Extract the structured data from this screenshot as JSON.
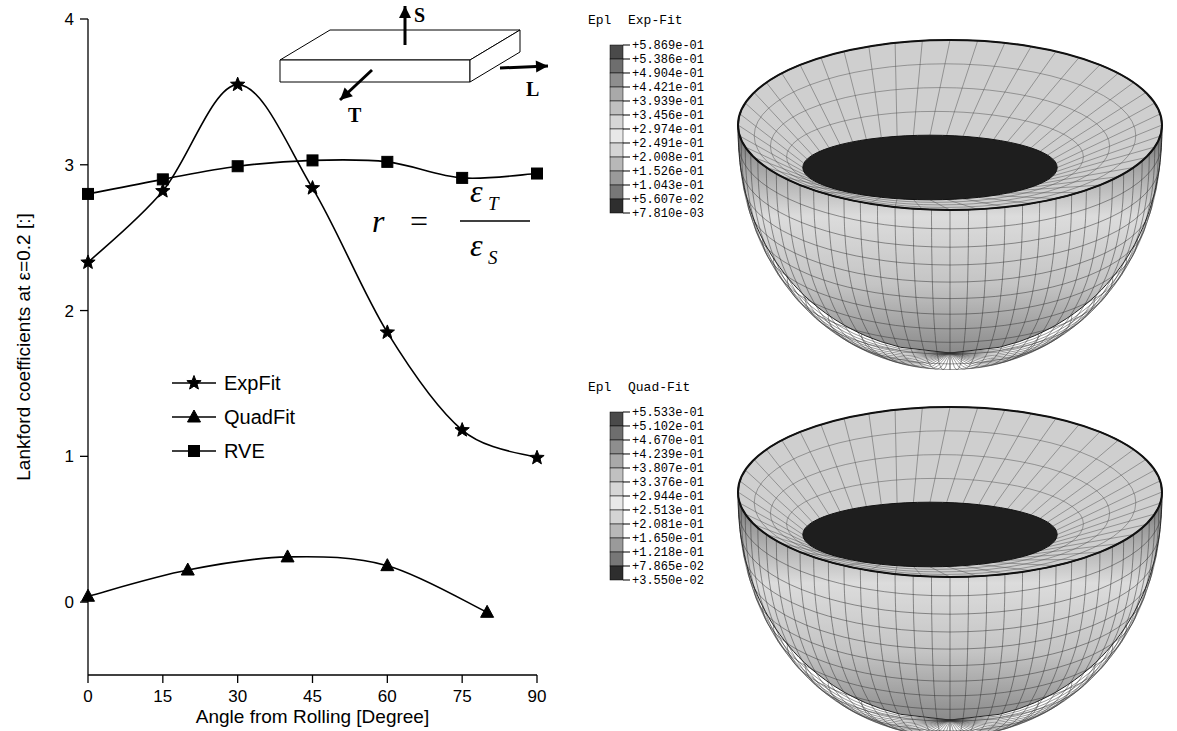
{
  "chart_data": {
    "type": "line",
    "x_label": "Angle from Rolling [Degree]",
    "y_label": "Lankford coefficients at ε=0.2 [:]",
    "xlim": [
      0,
      90
    ],
    "xticks": [
      0,
      15,
      30,
      45,
      60,
      75,
      90
    ],
    "ylim": [
      -0.5,
      4
    ],
    "yticks": [
      0,
      1,
      2,
      3,
      4
    ],
    "legend": "center-left",
    "series": [
      {
        "name": "ExpFit",
        "color": "#000000",
        "marker": "star",
        "line_style": "solid",
        "x": [
          0,
          15,
          30,
          45,
          60,
          75,
          90
        ],
        "values": [
          2.33,
          2.82,
          3.55,
          2.84,
          1.85,
          1.18,
          0.99
        ]
      },
      {
        "name": "QuadFit",
        "color": "#000000",
        "marker": "triangle",
        "line_style": "solid",
        "x": [
          0,
          20,
          40,
          60,
          80
        ],
        "values": [
          0.04,
          0.22,
          0.31,
          0.25,
          -0.07
        ]
      },
      {
        "name": "RVE",
        "color": "#000000",
        "marker": "square",
        "line_style": "solid",
        "x": [
          0,
          15,
          30,
          45,
          60,
          75,
          90
        ],
        "values": [
          2.8,
          2.9,
          2.99,
          3.03,
          3.02,
          2.91,
          2.94
        ]
      }
    ],
    "annotations": {
      "inset_axes": [
        "S",
        "L",
        "T"
      ],
      "formula": {
        "lhs": "r",
        "eq": "=",
        "num": "ε",
        "num_sub": "T",
        "den": "ε",
        "den_sub": "S"
      }
    }
  },
  "contour_plots": [
    {
      "variable": "Epl",
      "title": "Exp-Fit",
      "levels": [
        {
          "value": 0.5869,
          "label": "+5.869e-01"
        },
        {
          "value": 0.5386,
          "label": "+5.386e-01"
        },
        {
          "value": 0.4904,
          "label": "+4.904e-01"
        },
        {
          "value": 0.4421,
          "label": "+4.421e-01"
        },
        {
          "value": 0.3939,
          "label": "+3.939e-01"
        },
        {
          "value": 0.3456,
          "label": "+3.456e-01"
        },
        {
          "value": 0.2974,
          "label": "+2.974e-01"
        },
        {
          "value": 0.2491,
          "label": "+2.491e-01"
        },
        {
          "value": 0.2008,
          "label": "+2.008e-01"
        },
        {
          "value": 0.1526,
          "label": "+1.526e-01"
        },
        {
          "value": 0.1043,
          "label": "+1.043e-01"
        },
        {
          "value": 0.05607,
          "label": "+5.607e-02"
        },
        {
          "value": 0.00781,
          "label": "+7.810e-03"
        }
      ]
    },
    {
      "variable": "Epl",
      "title": "Quad-Fit",
      "levels": [
        {
          "value": 0.5533,
          "label": "+5.533e-01"
        },
        {
          "value": 0.5102,
          "label": "+5.102e-01"
        },
        {
          "value": 0.467,
          "label": "+4.670e-01"
        },
        {
          "value": 0.4239,
          "label": "+4.239e-01"
        },
        {
          "value": 0.3807,
          "label": "+3.807e-01"
        },
        {
          "value": 0.3376,
          "label": "+3.376e-01"
        },
        {
          "value": 0.2944,
          "label": "+2.944e-01"
        },
        {
          "value": 0.2513,
          "label": "+2.513e-01"
        },
        {
          "value": 0.2081,
          "label": "+2.081e-01"
        },
        {
          "value": 0.165,
          "label": "+1.650e-01"
        },
        {
          "value": 0.1218,
          "label": "+1.218e-01"
        },
        {
          "value": 0.07865,
          "label": "+7.865e-02"
        },
        {
          "value": 0.0355,
          "label": "+3.550e-02"
        }
      ]
    }
  ]
}
